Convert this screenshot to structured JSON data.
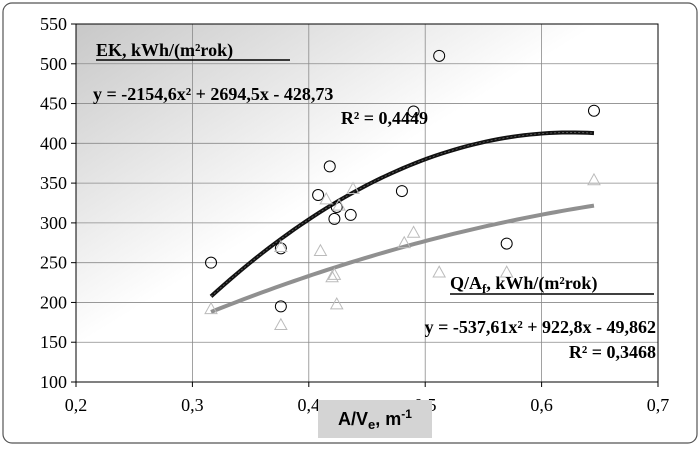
{
  "chart_data": {
    "type": "scatter",
    "title": "",
    "xlabel": "A/V",
    "xlabel_sub": "e",
    "xlabel_unit": ", m",
    "xlabel_sup": "-1",
    "xlim": [
      0.2,
      0.7
    ],
    "ylim": [
      100,
      550
    ],
    "x_ticks": [
      "0,2",
      "0,3",
      "0,4",
      "0,5",
      "0,6",
      "0,7"
    ],
    "y_ticks": [
      "100",
      "150",
      "200",
      "250",
      "300",
      "350",
      "400",
      "450",
      "500",
      "550"
    ],
    "grid": true,
    "background": "gray-gradient",
    "series": [
      {
        "name": "EK, kWh/(m²rok)",
        "marker": "circle",
        "color": "#000000",
        "points": [
          [
            0.316,
            250
          ],
          [
            0.376,
            268
          ],
          [
            0.376,
            195
          ],
          [
            0.408,
            335
          ],
          [
            0.418,
            371
          ],
          [
            0.422,
            305
          ],
          [
            0.424,
            320
          ],
          [
            0.436,
            310
          ],
          [
            0.48,
            340
          ],
          [
            0.49,
            440
          ],
          [
            0.512,
            510
          ],
          [
            0.57,
            274
          ],
          [
            0.645,
            441
          ]
        ],
        "trend": {
          "a": -2154.6,
          "b": 2694.5,
          "c": -428.73,
          "x_range": [
            0.316,
            0.645
          ],
          "equation": "y = -2154,6x² + 2694,5x - 428,73",
          "r2": "R² = 0,4449",
          "color": "#111111"
        }
      },
      {
        "name": "Q/A",
        "name_sub": "f",
        "name_unit": ", kWh/(m²rok)",
        "marker": "triangle",
        "color": "#bbbbbb",
        "points": [
          [
            0.316,
            192
          ],
          [
            0.376,
            172
          ],
          [
            0.376,
            270
          ],
          [
            0.41,
            265
          ],
          [
            0.415,
            330
          ],
          [
            0.42,
            232
          ],
          [
            0.422,
            235
          ],
          [
            0.424,
            198
          ],
          [
            0.426,
            322
          ],
          [
            0.438,
            343
          ],
          [
            0.482,
            275
          ],
          [
            0.49,
            288
          ],
          [
            0.512,
            238
          ],
          [
            0.57,
            238
          ],
          [
            0.645,
            354
          ]
        ],
        "trend": {
          "a": -537.61,
          "b": 922.8,
          "c": -49.862,
          "x_range": [
            0.316,
            0.645
          ],
          "equation": "y = -537,61x² + 922,8x - 49,862",
          "r2": "R² = 0,3468",
          "color": "#909090"
        }
      }
    ]
  }
}
